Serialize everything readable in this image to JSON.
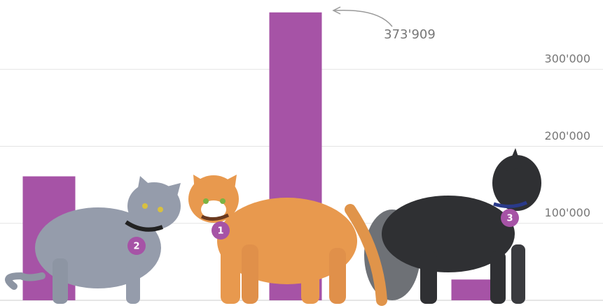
{
  "chart_data": {
    "type": "bar",
    "categories": [
      "2",
      "1",
      "3"
    ],
    "values": [
      161000,
      373909,
      27000
    ],
    "value_labels": [
      null,
      "373'909",
      null
    ],
    "color": "#a653a6",
    "ylim": [
      0,
      390000
    ],
    "yticks": [
      {
        "value": 100000,
        "label": "100'000"
      },
      {
        "value": 200000,
        "label": "200'000"
      },
      {
        "value": 300000,
        "label": "300'000"
      }
    ],
    "grid": true
  }
}
